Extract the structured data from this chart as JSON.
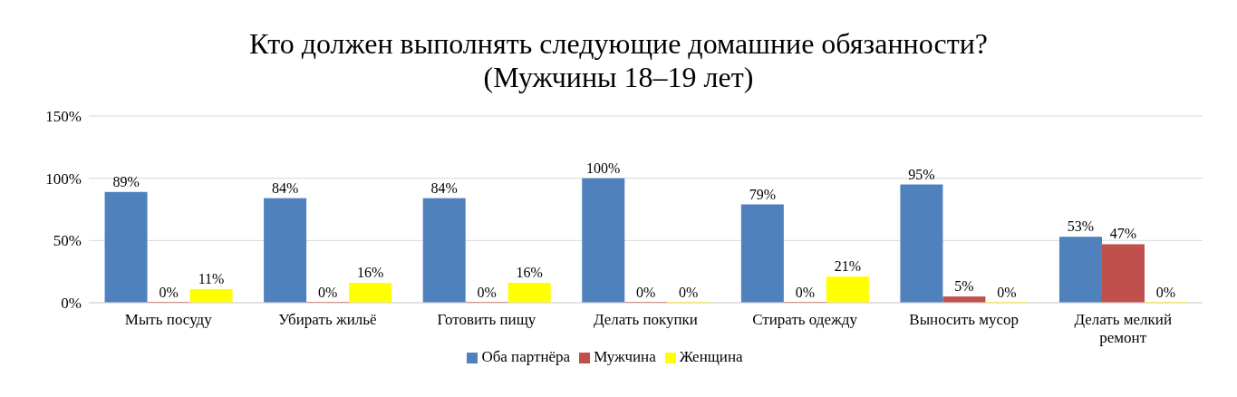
{
  "chart_data": {
    "type": "bar",
    "title": "Кто должен выполнять следующие домашние обязанности?",
    "subtitle": "(Мужчины 18–19 лет)",
    "categories": [
      "Мыть посуду",
      "Убирать жильё",
      "Готовить пищу",
      "Делать покупки",
      "Стирать одежду",
      "Выносить мусор",
      "Делать мелкий ремонт"
    ],
    "series": [
      {
        "name": "Оба партнёра",
        "color": "#4f81bd",
        "values": [
          89,
          84,
          84,
          100,
          79,
          95,
          53
        ],
        "value_labels": [
          "89%",
          "84%",
          "84%",
          "100%",
          "79%",
          "95%",
          "53%"
        ]
      },
      {
        "name": "Мужчина",
        "color": "#c0504d",
        "values": [
          0,
          0,
          0,
          0,
          0,
          5,
          47
        ],
        "value_labels": [
          "0%",
          "0%",
          "0%",
          "0%",
          "0%",
          "5%",
          "47%"
        ]
      },
      {
        "name": "Женщина",
        "color": "#ffff00",
        "values": [
          11,
          16,
          16,
          0,
          21,
          0,
          0
        ],
        "value_labels": [
          "11%",
          "16%",
          "16%",
          "0%",
          "21%",
          "0%",
          "0%"
        ]
      }
    ],
    "ylim": [
      0,
      150
    ],
    "yticks": [
      {
        "value": 0,
        "label": "0%"
      },
      {
        "value": 50,
        "label": "50%"
      },
      {
        "value": 100,
        "label": "100%"
      },
      {
        "value": 150,
        "label": "150%"
      }
    ],
    "grid": "y",
    "legend": "bottom"
  }
}
